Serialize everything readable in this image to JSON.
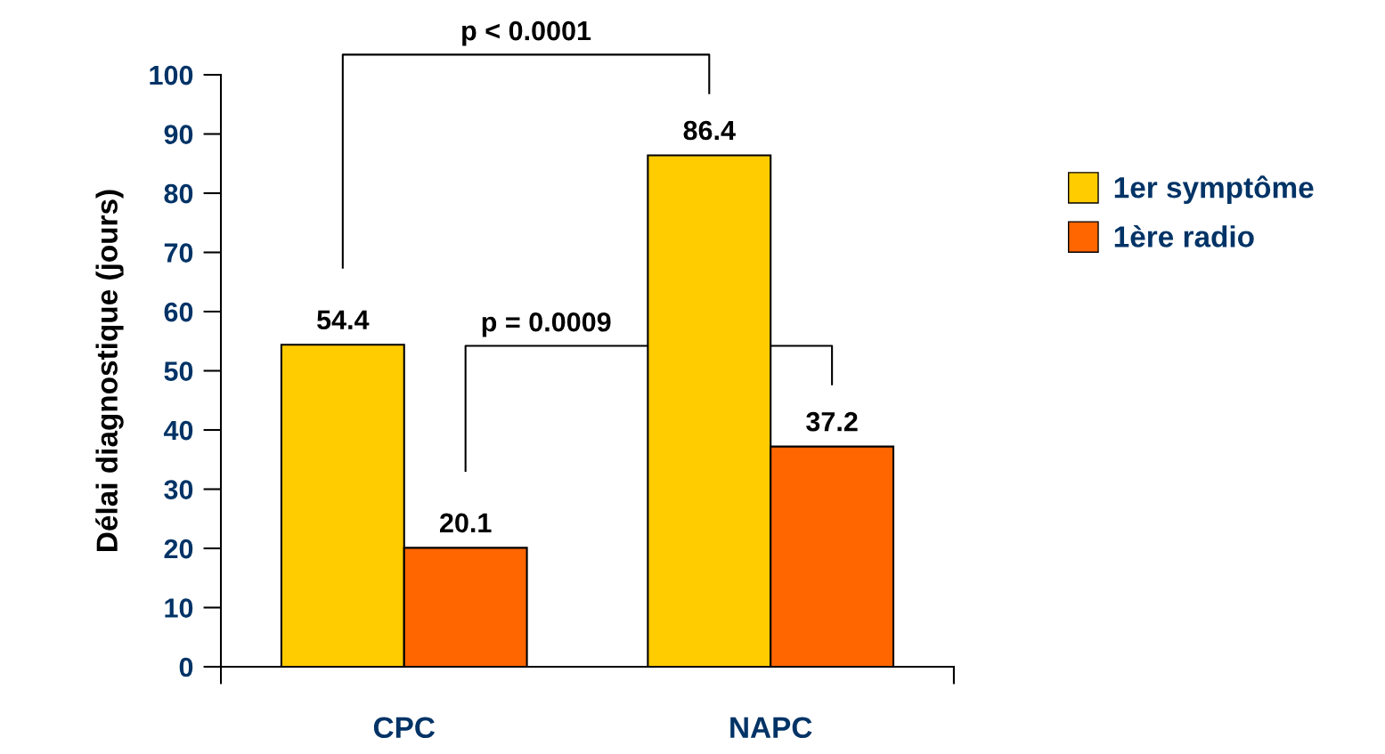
{
  "chart_data": {
    "type": "bar",
    "ylabel": "Délai diagnostique (jours)",
    "categories": [
      "CPC",
      "NAPC"
    ],
    "series": [
      {
        "name": "1er symptôme",
        "color": "#ffcc00",
        "values": [
          54.4,
          86.4
        ]
      },
      {
        "name": "1ère radio",
        "color": "#ff6600",
        "values": [
          20.1,
          37.2
        ]
      }
    ],
    "ylim": [
      0,
      100
    ],
    "yticks": [
      0,
      10,
      20,
      30,
      40,
      50,
      60,
      70,
      80,
      90,
      100
    ],
    "data_labels": true,
    "grid": false,
    "legend": "right",
    "annotations": [
      "p < 0.0001",
      "p = 0.0009"
    ]
  }
}
